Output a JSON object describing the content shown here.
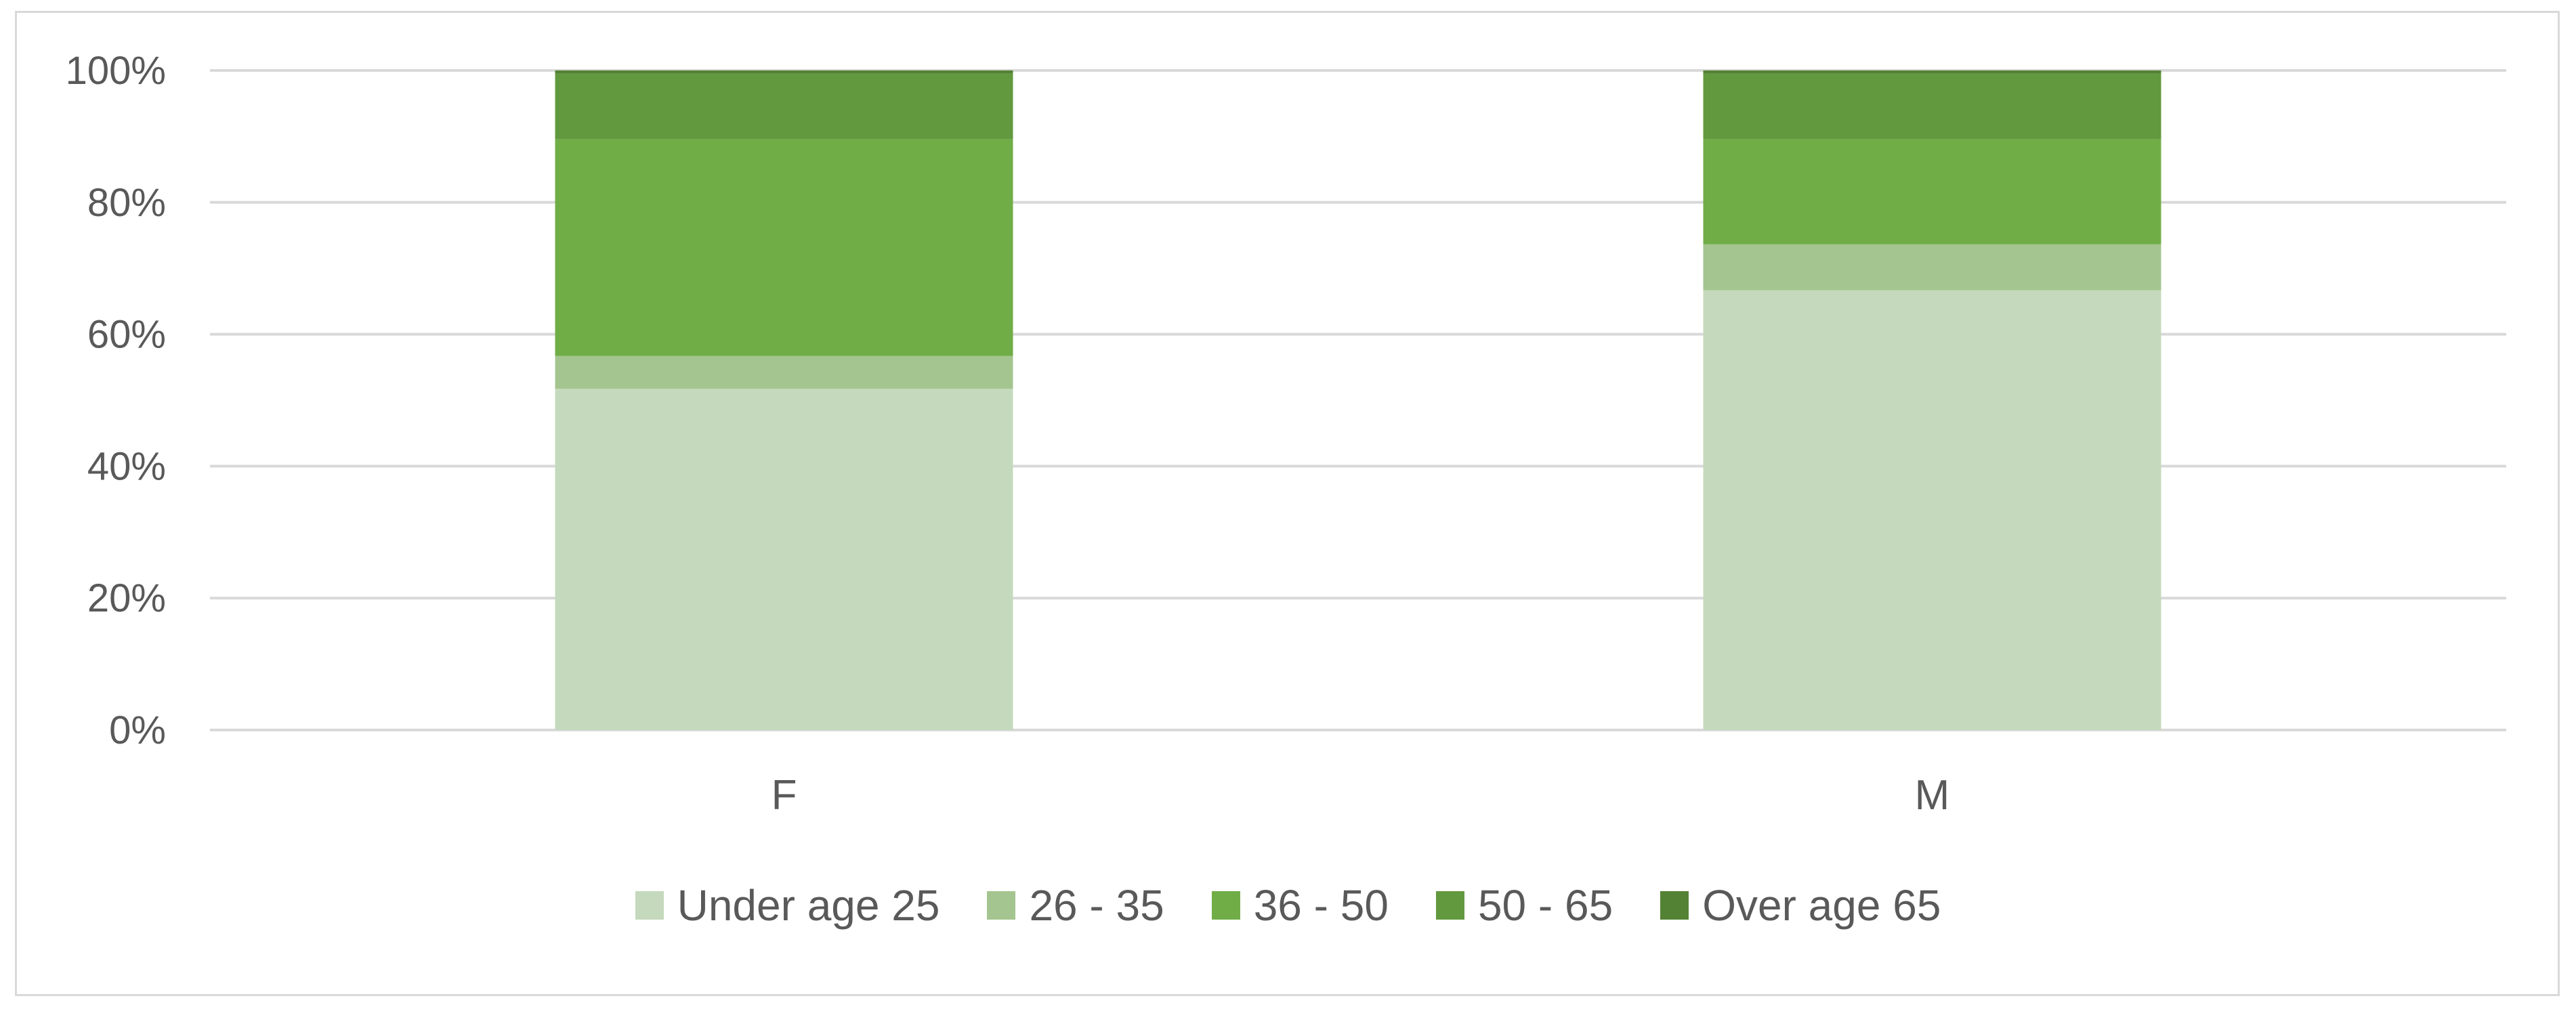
{
  "chart_data": {
    "type": "bar",
    "stacked": true,
    "percent_stacked": true,
    "categories": [
      "F",
      "M"
    ],
    "series": [
      {
        "name": "Under age 25",
        "values": [
          52,
          67
        ],
        "color": "#c5d9bc"
      },
      {
        "name": "26 - 35",
        "values": [
          5,
          7
        ],
        "color": "#a4c58f"
      },
      {
        "name": "36 - 50",
        "values": [
          33,
          16
        ],
        "color": "#70ad47"
      },
      {
        "name": "50 - 65",
        "values": [
          10,
          10
        ],
        "color": "#62993e"
      },
      {
        "name": "Over age 65",
        "values": [
          0.5,
          0.5
        ],
        "color": "#548235"
      }
    ],
    "yticks": [
      "0%",
      "20%",
      "40%",
      "60%",
      "80%",
      "100%"
    ],
    "ylim": [
      0,
      100
    ],
    "title": "",
    "xlabel": "",
    "ylabel": "",
    "grid": true,
    "legend_position": "bottom"
  }
}
